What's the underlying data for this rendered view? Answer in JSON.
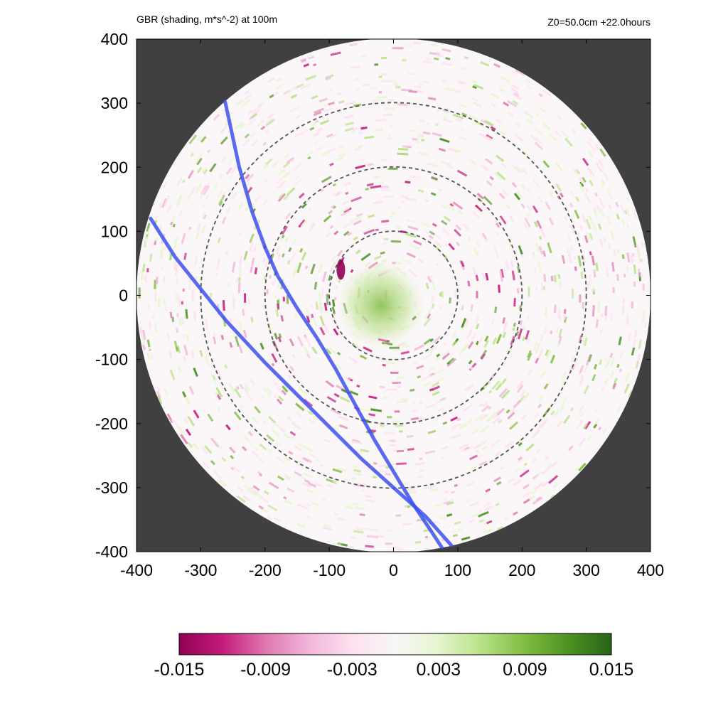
{
  "chart_data": {
    "type": "heatmap",
    "title": "GBR (shading, m*s^-2) at 100m",
    "subtitle": "Z0=50.0cm  +22.0hours",
    "xlim": [
      -400,
      400
    ],
    "ylim": [
      -400,
      400
    ],
    "x_ticks": [
      -400,
      -300,
      -200,
      -100,
      0,
      100,
      200,
      300,
      400
    ],
    "y_ticks": [
      -400,
      -300,
      -200,
      -100,
      0,
      100,
      200,
      300,
      400
    ],
    "domain_radius": 400,
    "dashed_circles_radii": [
      100,
      200,
      300
    ],
    "colorbar": {
      "min": -0.015,
      "max": 0.015,
      "ticks": [
        "-0.015",
        "-0.009",
        "-0.003",
        "0.003",
        "0.009",
        "0.015"
      ],
      "colors": [
        "#8e0152",
        "#c51b7d",
        "#de77ae",
        "#f1b6da",
        "#fde0ef",
        "#f7f7f7",
        "#e6f5d0",
        "#b8e186",
        "#7fbc41",
        "#4d9221",
        "#276419"
      ]
    },
    "series": [
      {
        "x": [
          -262,
          -240,
          -220,
          -200,
          -180,
          -150,
          -120,
          -90,
          -60,
          -30,
          0,
          30,
          60,
          75
        ],
        "y": [
          302,
          200,
          130,
          75,
          30,
          -20,
          -65,
          -115,
          -170,
          -225,
          -275,
          -325,
          -370,
          -393
        ]
      },
      {
        "x": [
          -378,
          -340,
          -300,
          -260,
          -200,
          -150,
          -100,
          -50,
          0,
          50,
          90
        ],
        "y": [
          120,
          60,
          10,
          -40,
          -105,
          -155,
          -205,
          -255,
          -300,
          -345,
          -390
        ]
      }
    ],
    "colors": {
      "outside": "#404040",
      "tracks": "#3c50f0",
      "circles": "#555555"
    }
  }
}
